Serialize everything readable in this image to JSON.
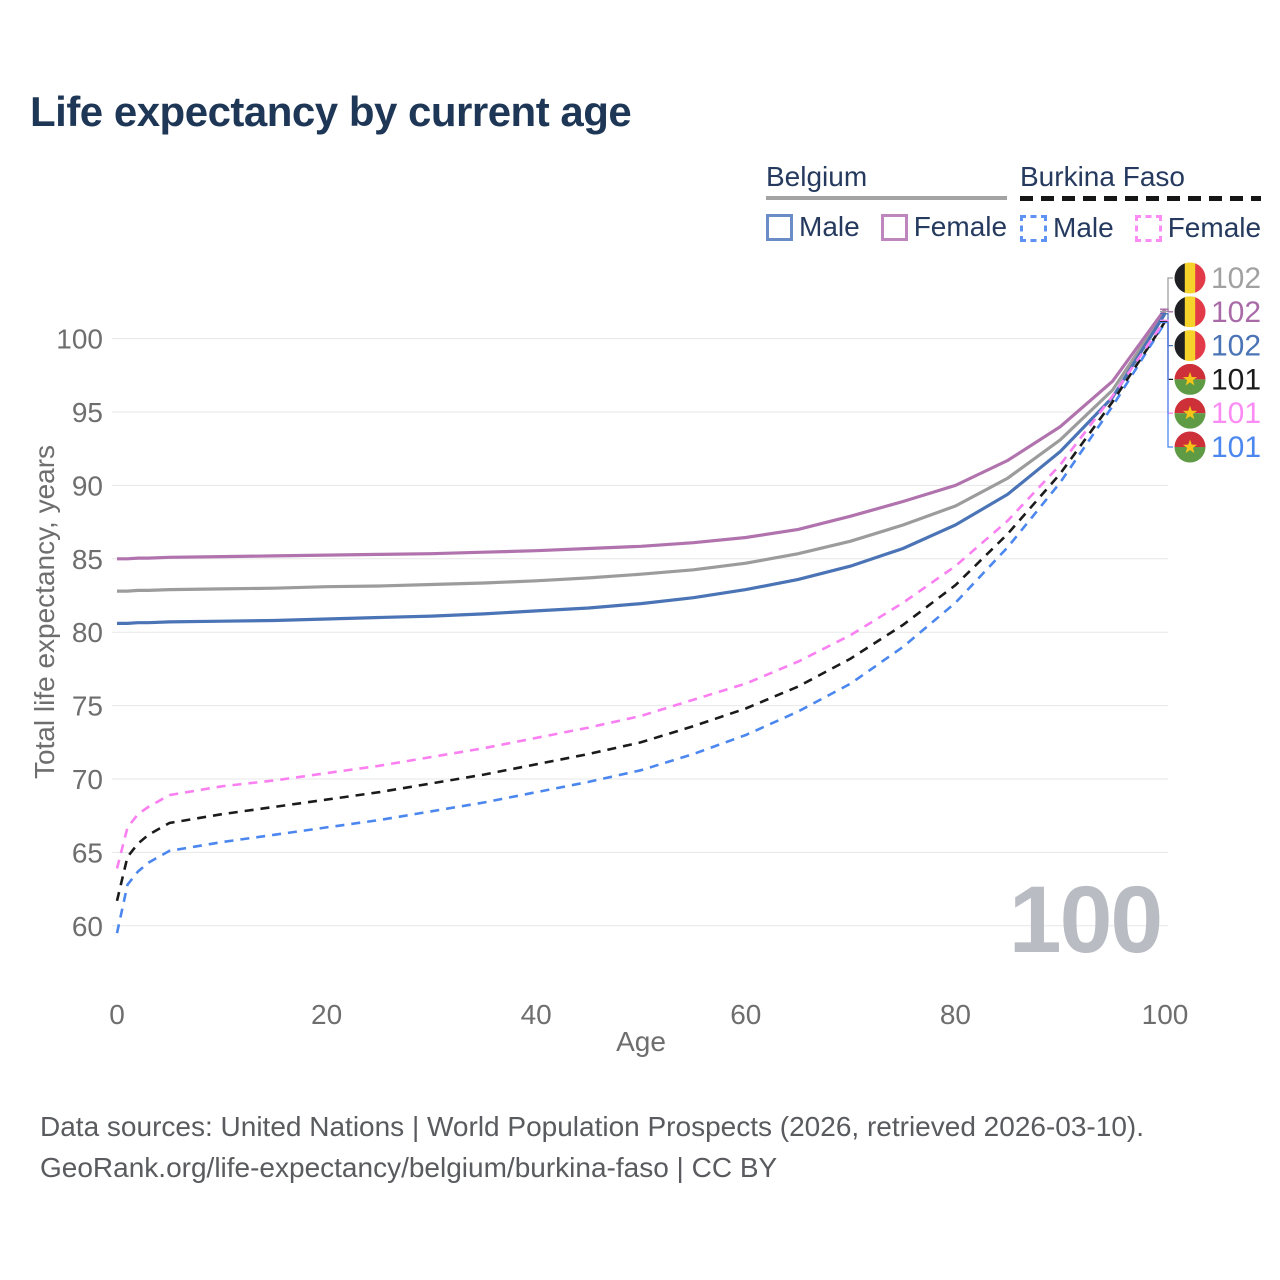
{
  "title": "Life expectancy by current age",
  "watermark": "100",
  "legend": {
    "groups": [
      {
        "label": "Belgium",
        "line_style": "solid",
        "line_color": "#a3a3a3",
        "items": [
          {
            "label": "Male",
            "color": "#6a8cc7",
            "dash": false
          },
          {
            "label": "Female",
            "color": "#bd86bc",
            "dash": false
          }
        ]
      },
      {
        "label": "Burkina Faso",
        "line_style": "dashed",
        "line_color": "#161616",
        "items": [
          {
            "label": "Male",
            "color": "#5e92f3",
            "dash": true
          },
          {
            "label": "Female",
            "color": "#fb8cf3",
            "dash": true
          }
        ]
      }
    ]
  },
  "footer": {
    "line1": "Data sources: United Nations | World Population Prospects (2026, retrieved 2026-03-10).",
    "line2": "GeoRank.org/life-expectancy/belgium/burkina-faso | CC BY"
  },
  "chart_data": {
    "type": "line",
    "title": "Life expectancy by current age",
    "xlabel": "Age",
    "ylabel": "Total life expectancy, years",
    "x_ticks": [
      0,
      20,
      40,
      60,
      80,
      100
    ],
    "y_ticks": [
      60,
      65,
      70,
      75,
      80,
      85,
      90,
      95,
      100
    ],
    "xlim": [
      0,
      100
    ],
    "ylim": [
      58.5,
      103
    ],
    "grid": "horizontal",
    "grid_color": "#e7e7e7",
    "tick_color": "#6e6e6e",
    "legend_position": "top-right",
    "ages": [
      0,
      1,
      2,
      3,
      5,
      10,
      15,
      20,
      25,
      30,
      35,
      40,
      45,
      50,
      55,
      60,
      65,
      70,
      75,
      80,
      85,
      90,
      95,
      100
    ],
    "series": [
      {
        "name": "Belgium Both sexes",
        "country": "Belgium",
        "sex": "Both",
        "color": "#9c9c9c",
        "dash": false,
        "values": [
          82.8,
          82.8,
          82.85,
          82.85,
          82.9,
          82.95,
          83.0,
          83.1,
          83.15,
          83.25,
          83.35,
          83.5,
          83.7,
          83.95,
          84.25,
          84.7,
          85.35,
          86.2,
          87.3,
          88.6,
          90.5,
          93.1,
          96.5,
          101.85
        ]
      },
      {
        "name": "Belgium Female",
        "country": "Belgium",
        "sex": "Female",
        "color": "#b173ad",
        "dash": false,
        "values": [
          85.0,
          85.0,
          85.05,
          85.05,
          85.1,
          85.15,
          85.2,
          85.25,
          85.3,
          85.35,
          85.45,
          85.55,
          85.7,
          85.85,
          86.1,
          86.45,
          87.0,
          87.9,
          88.9,
          90.0,
          91.7,
          94.0,
          97.1,
          102.0
        ]
      },
      {
        "name": "Belgium Male",
        "country": "Belgium",
        "sex": "Male",
        "color": "#4a74b5",
        "dash": false,
        "values": [
          80.6,
          80.6,
          80.65,
          80.65,
          80.7,
          80.75,
          80.8,
          80.9,
          81.0,
          81.1,
          81.25,
          81.45,
          81.65,
          81.95,
          82.35,
          82.9,
          83.6,
          84.5,
          85.7,
          87.3,
          89.4,
          92.3,
          96.0,
          101.7
        ]
      },
      {
        "name": "Burkina Faso Male",
        "country": "Burkina Faso",
        "sex": "Male",
        "color": "#4b87ef",
        "dash": true,
        "values": [
          59.5,
          62.8,
          63.7,
          64.3,
          65.1,
          65.7,
          66.2,
          66.7,
          67.2,
          67.8,
          68.4,
          69.1,
          69.8,
          70.6,
          71.7,
          73.0,
          74.6,
          76.5,
          79.0,
          82.0,
          85.8,
          90.2,
          95.4,
          101.1
        ]
      },
      {
        "name": "Burkina Faso Both sexes",
        "country": "Burkina Faso",
        "sex": "Both",
        "color": "#1b1b1b",
        "dash": true,
        "values": [
          61.7,
          64.7,
          65.6,
          66.2,
          67.0,
          67.6,
          68.1,
          68.6,
          69.1,
          69.7,
          70.3,
          71.0,
          71.7,
          72.5,
          73.6,
          74.8,
          76.3,
          78.2,
          80.5,
          83.2,
          86.7,
          90.8,
          95.7,
          101.15
        ]
      },
      {
        "name": "Burkina Faso Female",
        "country": "Burkina Faso",
        "sex": "Female",
        "color": "#fa80f2",
        "dash": true,
        "values": [
          63.9,
          66.7,
          67.6,
          68.1,
          68.9,
          69.5,
          69.9,
          70.4,
          70.9,
          71.5,
          72.1,
          72.8,
          73.5,
          74.3,
          75.4,
          76.5,
          78.0,
          79.8,
          82.0,
          84.5,
          87.6,
          91.4,
          96.1,
          101.25
        ]
      }
    ],
    "end_labels": [
      {
        "flag": "belgium",
        "value": "102",
        "color": "#a1a1a1",
        "series": 0
      },
      {
        "flag": "belgium",
        "value": "102",
        "color": "#a86ba8",
        "series": 1
      },
      {
        "flag": "belgium",
        "value": "102",
        "color": "#4a74b5",
        "series": 2
      },
      {
        "flag": "burkina-faso",
        "value": "101",
        "color": "#1b1b1b",
        "series": 4
      },
      {
        "flag": "burkina-faso",
        "value": "101",
        "color": "#fb8cf3",
        "series": 5
      },
      {
        "flag": "burkina-faso",
        "value": "101",
        "color": "#4b87ef",
        "series": 3
      }
    ],
    "flag_colors": {
      "belgium": {
        "stripes": [
          "#1f2023",
          "#f6d32b",
          "#e23a49"
        ]
      },
      "burkina-faso": {
        "top": "#cd3038",
        "bottom": "#5f9b45",
        "star": "#f5c518"
      }
    }
  }
}
